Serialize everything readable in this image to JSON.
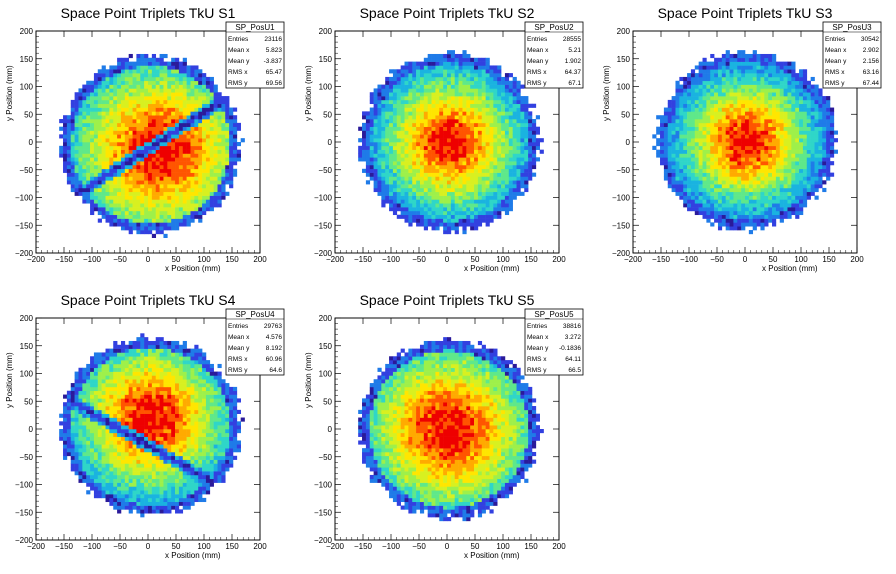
{
  "chart_data": [
    {
      "type": "heatmap",
      "title": "Space Point Triplets TkU S1",
      "xlabel": "x Position (mm)",
      "ylabel": "y Position (mm)",
      "xlim": [
        -200,
        200
      ],
      "ylim": [
        -200,
        200
      ],
      "xticks": [
        "−200",
        "−150",
        "−100",
        "−50",
        "0",
        "50",
        "100",
        "150",
        "200"
      ],
      "yticks": [
        "−200",
        "−150",
        "−100",
        "−50",
        "0",
        "50",
        "100",
        "150",
        "200"
      ],
      "stats": {
        "name": "SP_PosU1",
        "rows": [
          {
            "label": "Entries",
            "value": "23116"
          },
          {
            "label": "Mean x",
            "value": "5.823"
          },
          {
            "label": "Mean y",
            "value": "-3.837"
          },
          {
            "label": "RMS x",
            "value": "65.47"
          },
          {
            "label": "RMS y",
            "value": "69.56"
          }
        ]
      },
      "distribution": {
        "center": [
          5,
          -5
        ],
        "radius": 160,
        "core_radius": 110,
        "gap_line": {
          "angle_deg": 33,
          "offset": -10
        },
        "core_shift": [
          15,
          -10
        ]
      }
    },
    {
      "type": "heatmap",
      "title": "Space Point Triplets TkU S2",
      "xlabel": "x Position (mm)",
      "ylabel": "y Position (mm)",
      "xlim": [
        -200,
        200
      ],
      "ylim": [
        -200,
        200
      ],
      "xticks": [
        "−200",
        "−150",
        "−100",
        "−50",
        "0",
        "50",
        "100",
        "150",
        "200"
      ],
      "yticks": [
        "−200",
        "−150",
        "−100",
        "−50",
        "0",
        "50",
        "100",
        "150",
        "200"
      ],
      "stats": {
        "name": "SP_PosU2",
        "rows": [
          {
            "label": "Entries",
            "value": "28555"
          },
          {
            "label": "Mean x",
            "value": "5.21"
          },
          {
            "label": "Mean y",
            "value": "1.902"
          },
          {
            "label": "RMS x",
            "value": "64.37"
          },
          {
            "label": "RMS y",
            "value": "67.1"
          }
        ]
      },
      "distribution": {
        "center": [
          5,
          0
        ],
        "radius": 160,
        "core_radius": 85,
        "core_shift": [
          0,
          0
        ]
      }
    },
    {
      "type": "heatmap",
      "title": "Space Point Triplets TkU S3",
      "xlabel": "x Position (mm)",
      "ylabel": "y Position (mm)",
      "xlim": [
        -200,
        200
      ],
      "ylim": [
        -200,
        200
      ],
      "xticks": [
        "−200",
        "−150",
        "−100",
        "−50",
        "0",
        "50",
        "100",
        "150",
        "200"
      ],
      "yticks": [
        "−200",
        "−150",
        "−100",
        "−50",
        "0",
        "50",
        "100",
        "150",
        "200"
      ],
      "stats": {
        "name": "SP_PosU3",
        "rows": [
          {
            "label": "Entries",
            "value": "30542"
          },
          {
            "label": "Mean x",
            "value": "2.902"
          },
          {
            "label": "Mean y",
            "value": "2.156"
          },
          {
            "label": "RMS x",
            "value": "63.16"
          },
          {
            "label": "RMS y",
            "value": "67.44"
          }
        ]
      },
      "distribution": {
        "center": [
          3,
          2
        ],
        "radius": 160,
        "core_radius": 80,
        "core_shift": [
          0,
          0
        ]
      }
    },
    {
      "type": "heatmap",
      "title": "Space Point Triplets TkU S4",
      "xlabel": "x Position (mm)",
      "ylabel": "y Position (mm)",
      "xlim": [
        -200,
        200
      ],
      "ylim": [
        -200,
        200
      ],
      "xticks": [
        "−200",
        "−150",
        "−100",
        "−50",
        "0",
        "50",
        "100",
        "150",
        "200"
      ],
      "yticks": [
        "−200",
        "−150",
        "−100",
        "−50",
        "0",
        "50",
        "100",
        "150",
        "200"
      ],
      "stats": {
        "name": "SP_PosU4",
        "rows": [
          {
            "label": "Entries",
            "value": "29763"
          },
          {
            "label": "Mean x",
            "value": "4.576"
          },
          {
            "label": "Mean y",
            "value": "8.192"
          },
          {
            "label": "RMS x",
            "value": "60.96"
          },
          {
            "label": "RMS y",
            "value": "64.6"
          }
        ]
      },
      "distribution": {
        "center": [
          5,
          5
        ],
        "radius": 160,
        "core_radius": 95,
        "gap_line": {
          "angle_deg": -30,
          "offset": -25
        },
        "core_shift": [
          0,
          15
        ]
      }
    },
    {
      "type": "heatmap",
      "title": "Space Point Triplets TkU S5",
      "xlabel": "x Position (mm)",
      "ylabel": "y Position (mm)",
      "xlim": [
        -200,
        200
      ],
      "ylim": [
        -200,
        200
      ],
      "xticks": [
        "−200",
        "−150",
        "−100",
        "−50",
        "0",
        "50",
        "100",
        "150",
        "200"
      ],
      "yticks": [
        "−200",
        "−150",
        "−100",
        "−50",
        "0",
        "50",
        "100",
        "150",
        "200"
      ],
      "stats": {
        "name": "SP_PosU5",
        "rows": [
          {
            "label": "Entries",
            "value": "38816"
          },
          {
            "label": "Mean x",
            "value": "3.272"
          },
          {
            "label": "Mean y",
            "value": "-0.1836"
          },
          {
            "label": "RMS x",
            "value": "64.11"
          },
          {
            "label": "RMS y",
            "value": "66.5"
          }
        ]
      },
      "distribution": {
        "center": [
          3,
          0
        ],
        "radius": 160,
        "core_radius": 105,
        "core_shift": [
          0,
          0
        ]
      }
    }
  ],
  "palette": [
    "#2a1a9a",
    "#3240e0",
    "#1f7be8",
    "#1ab3e0",
    "#2fd6c8",
    "#5fe88a",
    "#9ef04a",
    "#d8f020",
    "#ffe600",
    "#ffaa00",
    "#ff5500",
    "#ee0000"
  ]
}
